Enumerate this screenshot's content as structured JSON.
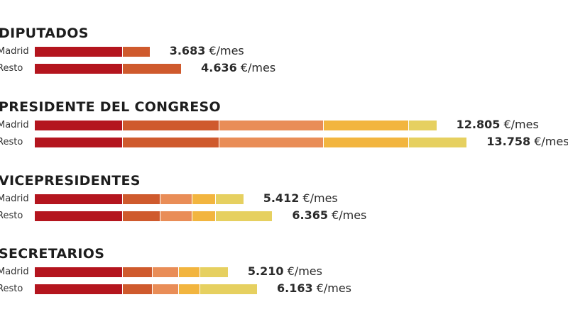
{
  "chart_data": {
    "type": "bar",
    "orientation": "horizontal",
    "stacked": true,
    "segment_colors": [
      "#b4151e",
      "#cf5a2d",
      "#e98d57",
      "#f2b53f",
      "#e6d060"
    ],
    "groups": [
      {
        "title": "DIPUTADOS",
        "rows": [
          {
            "label": "Madrid",
            "segments": [
              2960,
              900
            ],
            "value_number": "3.683",
            "value_unit": "€/mes"
          },
          {
            "label": "Resto",
            "segments": [
              2960,
              1960
            ],
            "value_number": "4.636",
            "value_unit": "€/mes"
          }
        ]
      },
      {
        "title": "PRESIDENTE DEL CONGRESO",
        "rows": [
          {
            "label": "Madrid",
            "segments": [
              2960,
              3250,
              3500,
              2860,
              930
            ],
            "value_number": "12.805",
            "value_unit": "€/mes"
          },
          {
            "label": "Resto",
            "segments": [
              2960,
              3250,
              3500,
              2860,
              1950
            ],
            "value_number": "13.758",
            "value_unit": "€/mes"
          }
        ]
      },
      {
        "title": "VICEPRESIDENTES",
        "rows": [
          {
            "label": "Madrid",
            "segments": [
              2960,
              1270,
              1080,
              770,
              930
            ],
            "value_number": "5.412",
            "value_unit": "€/mes"
          },
          {
            "label": "Resto",
            "segments": [
              2960,
              1270,
              1080,
              770,
              1900
            ],
            "value_number": "6.365",
            "value_unit": "€/mes"
          }
        ]
      },
      {
        "title": "SECRETARIOS",
        "rows": [
          {
            "label": "Madrid",
            "segments": [
              2960,
              1000,
              880,
              720,
              930
            ],
            "value_number": "5.210",
            "value_unit": "€/mes"
          },
          {
            "label": "Resto",
            "segments": [
              2960,
              1000,
              880,
              720,
              1910
            ],
            "value_number": "6.163",
            "value_unit": "€/mes"
          }
        ]
      }
    ]
  }
}
